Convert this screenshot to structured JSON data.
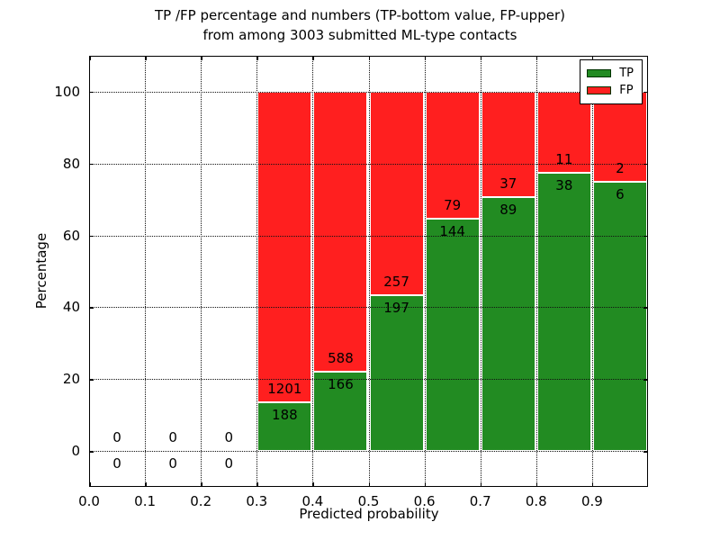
{
  "title": {
    "line1": "TP /FP percentage and numbers (TP-bottom value, FP-upper)",
    "line2": "from among 3003 submitted ML-type contacts"
  },
  "axes": {
    "xlabel": "Predicted probability",
    "ylabel": "Percentage"
  },
  "legend": {
    "items": [
      {
        "label": "TP",
        "color": "#228b22"
      },
      {
        "label": "FP",
        "color": "#ff1f1f"
      }
    ]
  },
  "chart_data": {
    "type": "bar",
    "stacked": true,
    "normalized_to_percent": true,
    "title": "TP /FP percentage and numbers (TP-bottom value, FP-upper) from among 3003 submitted ML-type contacts",
    "xlabel": "Predicted probability",
    "ylabel": "Percentage",
    "total_contacts": 3003,
    "bin_width": 0.1,
    "xlim": [
      0.0,
      1.0
    ],
    "ylim": [
      -10,
      110
    ],
    "grid": true,
    "grid_style": "dotted",
    "legend_position": "upper right",
    "colors": {
      "tp": "#228b22",
      "fp": "#ff1f1f",
      "bar_edge": "#ffffff"
    },
    "x_ticks": [
      0.0,
      0.1,
      0.2,
      0.3,
      0.4,
      0.5,
      0.6,
      0.7,
      0.8,
      0.9
    ],
    "x_tick_labels": [
      "0.0",
      "0.1",
      "0.2",
      "0.3",
      "0.4",
      "0.5",
      "0.6",
      "0.7",
      "0.8",
      "0.9"
    ],
    "y_ticks": [
      0,
      20,
      40,
      60,
      80,
      100
    ],
    "y_tick_labels": [
      "0",
      "20",
      "40",
      "60",
      "80",
      "100"
    ],
    "bins": [
      {
        "x_start": 0.0,
        "tp": 0,
        "fp": 0,
        "tp_pct": 0
      },
      {
        "x_start": 0.1,
        "tp": 0,
        "fp": 0,
        "tp_pct": 0
      },
      {
        "x_start": 0.2,
        "tp": 0,
        "fp": 0,
        "tp_pct": 0
      },
      {
        "x_start": 0.3,
        "tp": 188,
        "fp": 1201,
        "tp_pct": 13.5
      },
      {
        "x_start": 0.4,
        "tp": 166,
        "fp": 588,
        "tp_pct": 22.0
      },
      {
        "x_start": 0.5,
        "tp": 197,
        "fp": 257,
        "tp_pct": 43.4
      },
      {
        "x_start": 0.6,
        "tp": 144,
        "fp": 79,
        "tp_pct": 64.6
      },
      {
        "x_start": 0.7,
        "tp": 89,
        "fp": 37,
        "tp_pct": 70.6
      },
      {
        "x_start": 0.8,
        "tp": 38,
        "fp": 11,
        "tp_pct": 77.6
      },
      {
        "x_start": 0.9,
        "tp": 6,
        "fp": 2,
        "tp_pct": 75.0
      }
    ]
  }
}
